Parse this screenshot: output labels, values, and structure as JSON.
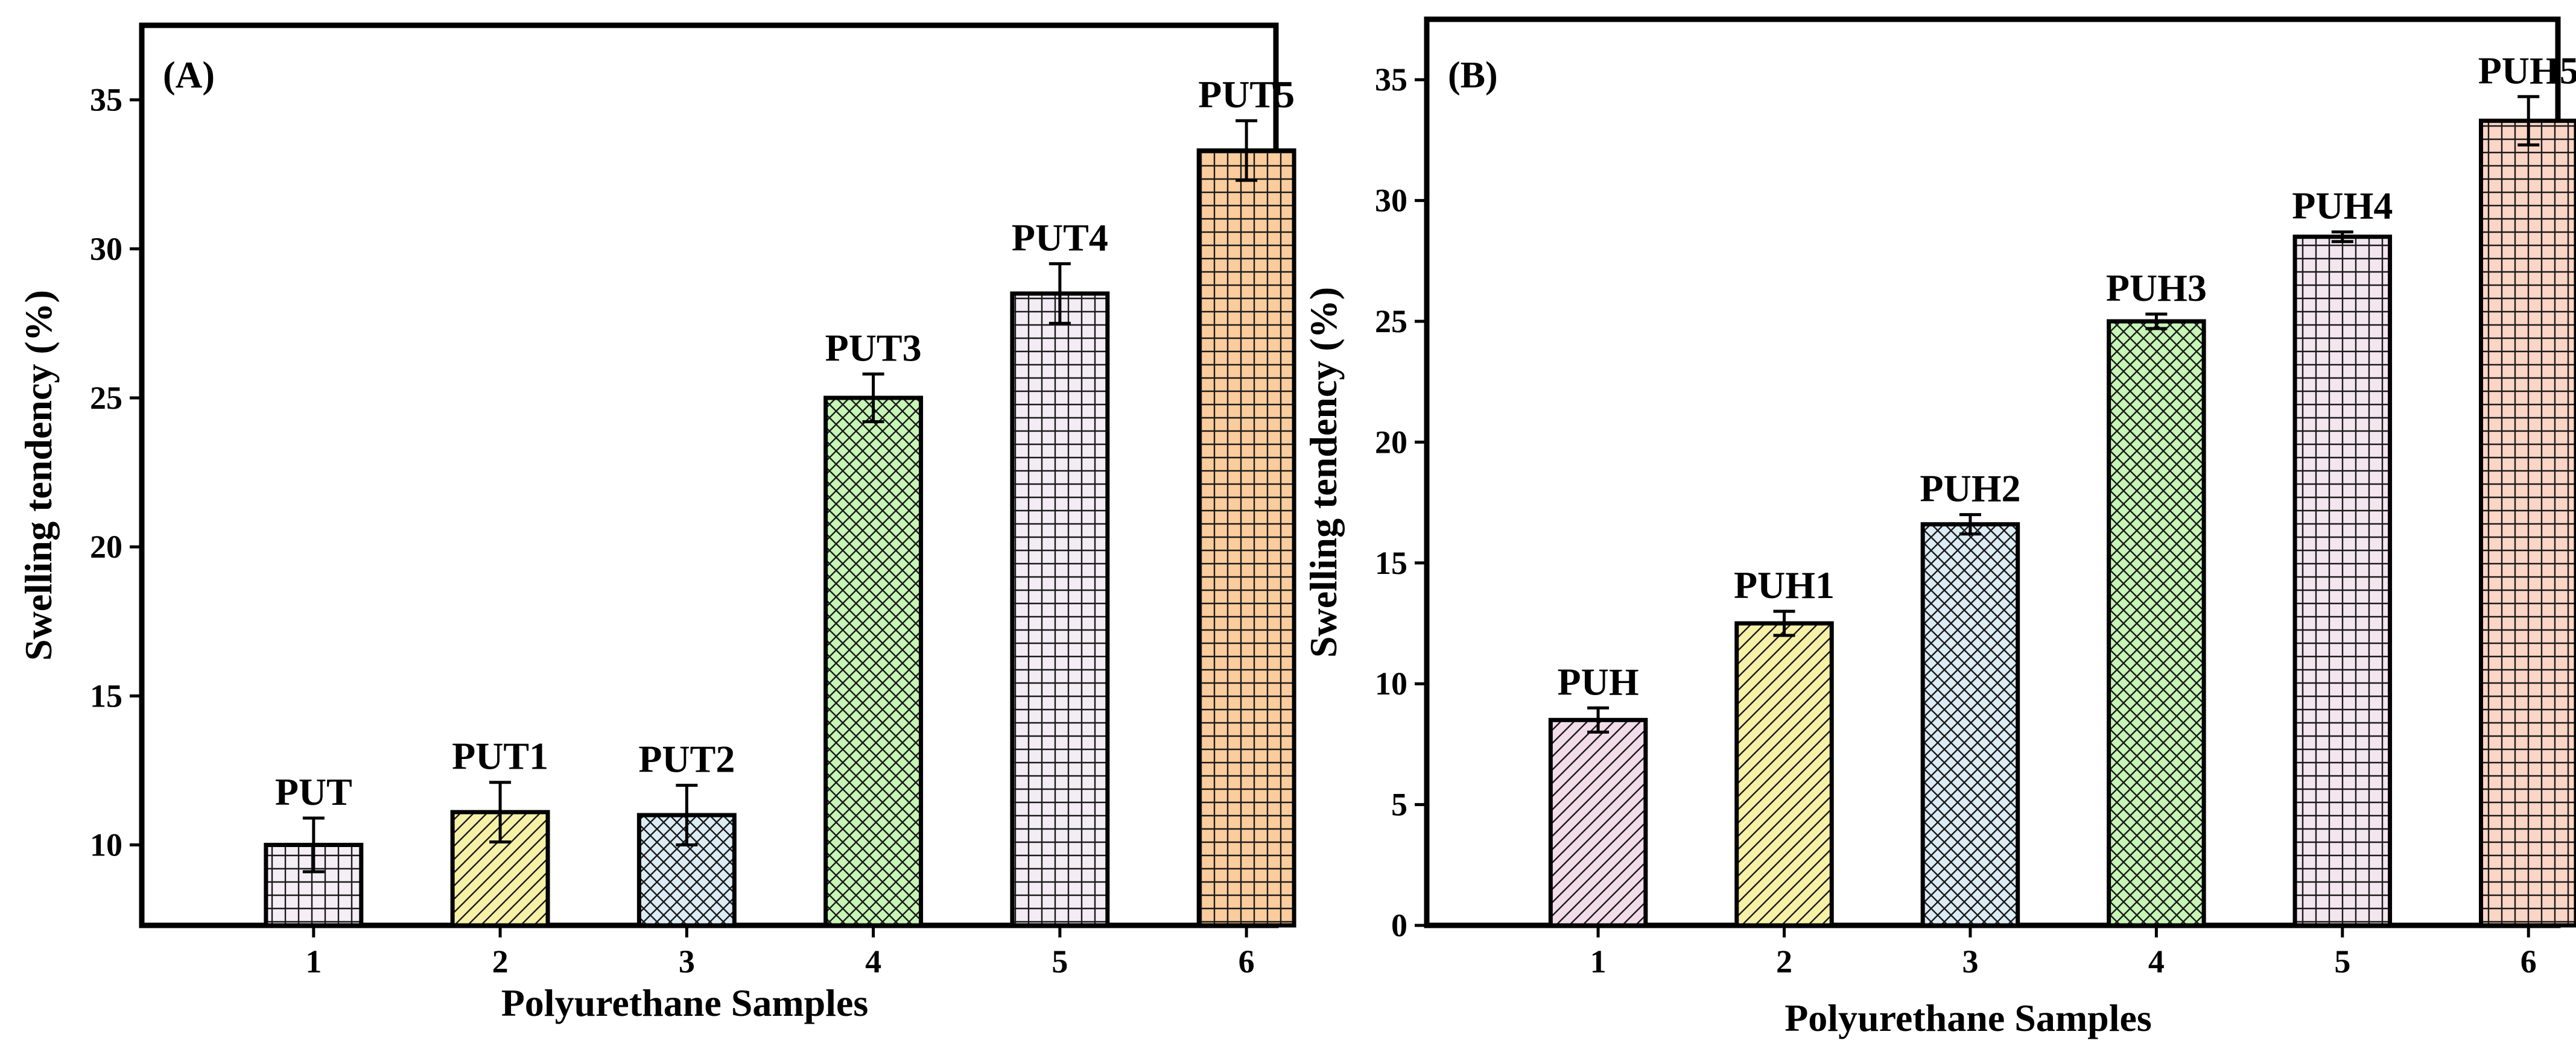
{
  "chart_data": [
    {
      "type": "bar",
      "panel_label": "(A)",
      "xlabel": "Polyurethane Samples",
      "ylabel": "Swelling tendency (%)",
      "ylim": [
        7.3,
        37.5
      ],
      "yticks": [
        10,
        15,
        20,
        25,
        30,
        35
      ],
      "categories": [
        "1",
        "2",
        "3",
        "4",
        "5",
        "6"
      ],
      "values": [
        10.0,
        11.1,
        11.0,
        25.0,
        28.5,
        33.3
      ],
      "errors": [
        0.9,
        1.0,
        1.0,
        0.8,
        1.0,
        1.0
      ],
      "bar_labels": [
        "PUT",
        "PUT1",
        "PUT2",
        "PUT3",
        "PUT4",
        "PUT5"
      ],
      "bar_colors": [
        "#f5eef5",
        "#f7f1a8",
        "#dcecf4",
        "#c6f5b6",
        "#f3ecf5",
        "#fbcc9d"
      ],
      "bar_patterns": [
        "grid",
        "diag",
        "cross",
        "cross",
        "grid",
        "grid"
      ]
    },
    {
      "type": "bar",
      "panel_label": "(B)",
      "xlabel": "Polyurethane Samples",
      "ylabel": "Swelling tendency (%)",
      "ylim": [
        0,
        37.5
      ],
      "yticks": [
        0,
        5,
        10,
        15,
        20,
        25,
        30,
        35
      ],
      "categories": [
        "1",
        "2",
        "3",
        "4",
        "5",
        "6"
      ],
      "values": [
        8.5,
        12.5,
        16.6,
        25.0,
        28.5,
        33.3
      ],
      "errors": [
        0.5,
        0.5,
        0.4,
        0.3,
        0.2,
        1.0
      ],
      "bar_labels": [
        "PUH",
        "PUH1",
        "PUH2",
        "PUH3",
        "PUH4",
        "PUH5"
      ],
      "bar_colors": [
        "#f2dcea",
        "#f7f1a8",
        "#dcecf4",
        "#c6f5b6",
        "#f3e6ee",
        "#fbd5c5"
      ],
      "bar_patterns": [
        "diag",
        "diag",
        "cross",
        "cross",
        "grid",
        "grid"
      ]
    }
  ]
}
